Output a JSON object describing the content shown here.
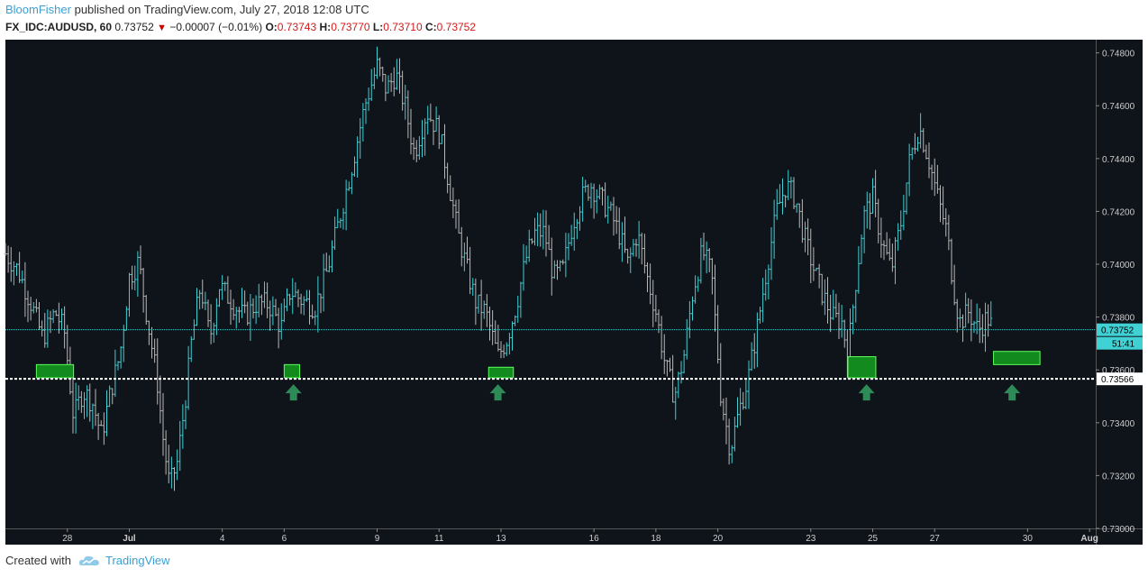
{
  "header": {
    "author": "BloomFisher",
    "published_text": "published on TradingView.com, July 27, 2018 12:08 UTC",
    "symbol": "FX_IDC:AUDUSD, 60",
    "last": "0.73752",
    "change": "−0.00007 (−0.01%)",
    "o_label": "O:",
    "o_value": "0.73743",
    "h_label": "H:",
    "h_value": "0.73770",
    "l_label": "L:",
    "l_value": "0.73710",
    "c_label": "C:",
    "c_value": "0.73752"
  },
  "footer": {
    "created_with": "Created with",
    "brand": "TradingView",
    "logo_icon": "tradingview-cloud-icon"
  },
  "colors": {
    "background": "#0f131a",
    "up_bar": "#3fd1d4",
    "down_bar": "#b8b8b8",
    "price_line": "#3fd1d4",
    "support_line": "#ffffff",
    "zone_fill": "#138a1d",
    "zone_border": "#5cff5c",
    "arrow": "#2e8b57"
  },
  "chart_data": {
    "type": "ohlc",
    "instrument": "FX_IDC:AUDUSD",
    "timeframe": "60",
    "ylim": [
      0.73,
      0.7485
    ],
    "y_ticks": [
      "0.74800",
      "0.74600",
      "0.74400",
      "0.74200",
      "0.74000",
      "0.73800",
      "0.73600",
      "0.73400",
      "0.73200",
      "0.73000"
    ],
    "x_ticks": [
      {
        "label": "28",
        "day": 2.0
      },
      {
        "label": "Jul",
        "day": 4.0
      },
      {
        "label": "4",
        "day": 7.0
      },
      {
        "label": "6",
        "day": 9.0
      },
      {
        "label": "9",
        "day": 12.0
      },
      {
        "label": "11",
        "day": 14.0
      },
      {
        "label": "13",
        "day": 16.0
      },
      {
        "label": "16",
        "day": 19.0
      },
      {
        "label": "18",
        "day": 21.0
      },
      {
        "label": "20",
        "day": 23.0
      },
      {
        "label": "23",
        "day": 26.0
      },
      {
        "label": "25",
        "day": 28.0
      },
      {
        "label": "27",
        "day": 30.0
      },
      {
        "label": "30",
        "day": 33.0
      },
      {
        "label": "Aug",
        "day": 35.0
      }
    ],
    "x_range_days": [
      0.0,
      35.2
    ],
    "price_path": [
      [
        0.0,
        0.7404
      ],
      [
        0.4,
        0.7398
      ],
      [
        0.8,
        0.7386
      ],
      [
        1.2,
        0.7372
      ],
      [
        1.6,
        0.7382
      ],
      [
        1.9,
        0.7375
      ],
      [
        2.2,
        0.7342
      ],
      [
        2.5,
        0.7352
      ],
      [
        2.8,
        0.7348
      ],
      [
        3.1,
        0.7335
      ],
      [
        3.4,
        0.7352
      ],
      [
        3.7,
        0.7366
      ],
      [
        4.0,
        0.7395
      ],
      [
        4.3,
        0.7401
      ],
      [
        4.6,
        0.7378
      ],
      [
        4.9,
        0.7356
      ],
      [
        5.1,
        0.7333
      ],
      [
        5.3,
        0.7316
      ],
      [
        5.55,
        0.7325
      ],
      [
        5.8,
        0.7348
      ],
      [
        6.0,
        0.737
      ],
      [
        6.3,
        0.7392
      ],
      [
        6.6,
        0.7372
      ],
      [
        6.9,
        0.7392
      ],
      [
        7.3,
        0.7386
      ],
      [
        7.7,
        0.738
      ],
      [
        8.1,
        0.7385
      ],
      [
        8.5,
        0.7385
      ],
      [
        8.9,
        0.7376
      ],
      [
        9.2,
        0.739
      ],
      [
        9.6,
        0.7386
      ],
      [
        10.0,
        0.7384
      ],
      [
        10.4,
        0.7398
      ],
      [
        10.8,
        0.7418
      ],
      [
        11.2,
        0.7438
      ],
      [
        11.6,
        0.746
      ],
      [
        12.0,
        0.7475
      ],
      [
        12.3,
        0.7466
      ],
      [
        12.6,
        0.7472
      ],
      [
        12.9,
        0.746
      ],
      [
        13.2,
        0.7442
      ],
      [
        13.6,
        0.7458
      ],
      [
        14.0,
        0.745
      ],
      [
        14.3,
        0.7432
      ],
      [
        14.6,
        0.7412
      ],
      [
        14.9,
        0.7398
      ],
      [
        15.2,
        0.7385
      ],
      [
        15.5,
        0.7382
      ],
      [
        15.9,
        0.7365
      ],
      [
        16.2,
        0.7372
      ],
      [
        16.5,
        0.7385
      ],
      [
        16.8,
        0.7402
      ],
      [
        17.1,
        0.7412
      ],
      [
        17.4,
        0.7412
      ],
      [
        17.7,
        0.7395
      ],
      [
        18.0,
        0.7398
      ],
      [
        18.3,
        0.7415
      ],
      [
        18.6,
        0.7425
      ],
      [
        18.9,
        0.743
      ],
      [
        19.2,
        0.7425
      ],
      [
        19.5,
        0.742
      ],
      [
        19.8,
        0.7412
      ],
      [
        20.1,
        0.74
      ],
      [
        20.4,
        0.7412
      ],
      [
        20.7,
        0.7396
      ],
      [
        21.0,
        0.7382
      ],
      [
        21.3,
        0.7362
      ],
      [
        21.6,
        0.735
      ],
      [
        21.9,
        0.7365
      ],
      [
        22.2,
        0.739
      ],
      [
        22.5,
        0.7405
      ],
      [
        22.8,
        0.7396
      ],
      [
        23.1,
        0.735
      ],
      [
        23.4,
        0.733
      ],
      [
        23.7,
        0.7345
      ],
      [
        24.0,
        0.7358
      ],
      [
        24.3,
        0.7378
      ],
      [
        24.6,
        0.74
      ],
      [
        24.9,
        0.742
      ],
      [
        25.2,
        0.743
      ],
      [
        25.5,
        0.7425
      ],
      [
        25.8,
        0.741
      ],
      [
        26.1,
        0.7398
      ],
      [
        26.4,
        0.7388
      ],
      [
        26.7,
        0.738
      ],
      [
        27.0,
        0.7378
      ],
      [
        27.2,
        0.7366
      ],
      [
        27.4,
        0.7388
      ],
      [
        27.7,
        0.7418
      ],
      [
        28.0,
        0.7425
      ],
      [
        28.3,
        0.7408
      ],
      [
        28.6,
        0.7398
      ],
      [
        28.9,
        0.7415
      ],
      [
        29.2,
        0.744
      ],
      [
        29.5,
        0.7452
      ],
      [
        29.8,
        0.744
      ],
      [
        30.1,
        0.7425
      ],
      [
        30.4,
        0.7412
      ],
      [
        30.6,
        0.7392
      ],
      [
        30.8,
        0.7378
      ],
      [
        31.1,
        0.7382
      ],
      [
        31.4,
        0.7375
      ],
      [
        31.7,
        0.738
      ],
      [
        31.9,
        0.7375
      ]
    ],
    "last_price": 0.73752,
    "last_price_label": "0.73752",
    "countdown_label": "51:41",
    "support_level": 0.73566,
    "support_label": "0.73566",
    "demand_zones": [
      {
        "start_day": 1.0,
        "end_day": 2.2,
        "top": 0.7362,
        "bottom": 0.7357
      },
      {
        "start_day": 9.0,
        "end_day": 9.5,
        "top": 0.7362,
        "bottom": 0.7357
      },
      {
        "start_day": 15.6,
        "end_day": 16.4,
        "top": 0.7361,
        "bottom": 0.7357
      },
      {
        "start_day": 27.2,
        "end_day": 28.1,
        "top": 0.7365,
        "bottom": 0.7357
      },
      {
        "start_day": 31.9,
        "end_day": 33.4,
        "top": 0.7367,
        "bottom": 0.7362
      }
    ],
    "arrows": [
      {
        "day": 9.3
      },
      {
        "day": 15.9
      },
      {
        "day": 27.8
      },
      {
        "day": 32.5
      }
    ]
  }
}
